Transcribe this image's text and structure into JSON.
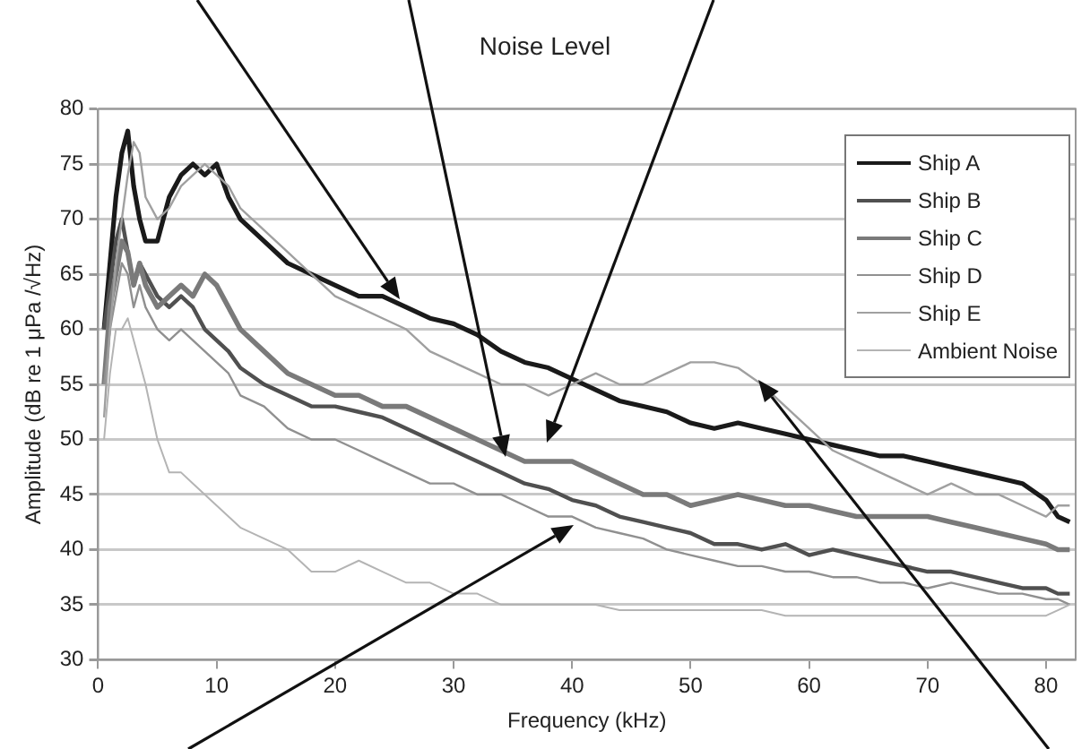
{
  "chart_data": {
    "type": "line",
    "title": "Noise Level",
    "xlabel": "Frequency (kHz)",
    "ylabel": "Amplitude (dB re 1 μPa /√Hz)",
    "x": [
      0.5,
      1,
      1.5,
      2,
      2.5,
      3,
      3.5,
      4,
      5,
      6,
      7,
      8,
      9,
      10,
      11,
      12,
      14,
      16,
      18,
      20,
      22,
      24,
      26,
      28,
      30,
      32,
      34,
      36,
      38,
      40,
      42,
      44,
      46,
      48,
      50,
      52,
      54,
      56,
      58,
      60,
      62,
      64,
      66,
      68,
      70,
      72,
      74,
      76,
      78,
      80,
      81,
      82
    ],
    "series": [
      {
        "name": "Ship A",
        "color": "#1a1a1a",
        "values": [
          60,
          66,
          72,
          76,
          78,
          73,
          70,
          68,
          68,
          72,
          74,
          75,
          74,
          75,
          72,
          70,
          68,
          66,
          65,
          64,
          63,
          63,
          62,
          61,
          60.5,
          59.5,
          58,
          57,
          56.5,
          55.5,
          54.5,
          53.5,
          53,
          52.5,
          51.5,
          51,
          51.5,
          51,
          50.5,
          50,
          49.5,
          49,
          48.5,
          48.5,
          48,
          47.5,
          47,
          46.5,
          46,
          44.5,
          43,
          42.5
        ]
      },
      {
        "name": "Ship B",
        "color": "#505050",
        "values": [
          60,
          64,
          68,
          70,
          67,
          64,
          66,
          65,
          63,
          62,
          63,
          62,
          60,
          59,
          58,
          56.5,
          55,
          54,
          53,
          53,
          52.5,
          52,
          51,
          50,
          49,
          48,
          47,
          46,
          45.5,
          44.5,
          44,
          43,
          42.5,
          42,
          41.5,
          40.5,
          40.5,
          40,
          40.5,
          39.5,
          40,
          39.5,
          39,
          38.5,
          38,
          38,
          37.5,
          37,
          36.5,
          36.5,
          36,
          36
        ]
      },
      {
        "name": "Ship C",
        "color": "#7a7a7a",
        "values": [
          55,
          62,
          65,
          68,
          67,
          64,
          66,
          64,
          62,
          63,
          64,
          63,
          65,
          64,
          62,
          60,
          58,
          56,
          55,
          54,
          54,
          53,
          53,
          52,
          51,
          50,
          49,
          48,
          48,
          48,
          47,
          46,
          45,
          45,
          44,
          44.5,
          45,
          44.5,
          44,
          44,
          43.5,
          43,
          43,
          43,
          43,
          42.5,
          42,
          41.5,
          41,
          40.5,
          40,
          40
        ]
      },
      {
        "name": "Ship D",
        "color": "#909090",
        "values": [
          55,
          60,
          63,
          66,
          65,
          62,
          64,
          62,
          60,
          59,
          60,
          59,
          58,
          57,
          56,
          54,
          53,
          51,
          50,
          50,
          49,
          48,
          47,
          46,
          46,
          45,
          45,
          44,
          43,
          43,
          42,
          41.5,
          41,
          40,
          39.5,
          39,
          38.5,
          38.5,
          38,
          38,
          37.5,
          37.5,
          37,
          37,
          36.5,
          37,
          36.5,
          36,
          36,
          35.5,
          35.5,
          35
        ]
      },
      {
        "name": "Ship E",
        "color": "#a0a0a0",
        "values": [
          52,
          60,
          66,
          70,
          74,
          77,
          76,
          72,
          70,
          71,
          73,
          74,
          75,
          74,
          73,
          71,
          69,
          67,
          65,
          63,
          62,
          61,
          60,
          58,
          57,
          56,
          55,
          55,
          54,
          55,
          56,
          55,
          55,
          56,
          57,
          57,
          56.5,
          55,
          53,
          51,
          49,
          48,
          47,
          46,
          45,
          46,
          45,
          45,
          44,
          43,
          44,
          44
        ]
      },
      {
        "name": "Ambient Noise",
        "color": "#b4b4b4",
        "values": [
          50,
          56,
          60,
          60,
          61,
          59,
          57,
          55,
          50,
          47,
          47,
          46,
          45,
          44,
          43,
          42,
          41,
          40,
          38,
          38,
          39,
          38,
          37,
          37,
          36,
          36,
          35,
          35,
          35,
          35,
          35,
          34.5,
          34.5,
          34.5,
          34.5,
          34.5,
          34.5,
          34.5,
          34,
          34,
          34,
          34,
          34,
          34,
          34,
          34,
          34,
          34,
          34,
          34,
          34.5,
          35
        ]
      }
    ],
    "xlim": [
      0,
      82.5
    ],
    "xticks": [
      0,
      10,
      20,
      30,
      40,
      50,
      60,
      70,
      80
    ],
    "ylim": [
      30,
      80
    ],
    "yticks": [
      30,
      35,
      40,
      45,
      50,
      55,
      60,
      65,
      70,
      75,
      80
    ],
    "grid": "y",
    "legend": "top right",
    "marker": "none",
    "line_style": "solid"
  }
}
